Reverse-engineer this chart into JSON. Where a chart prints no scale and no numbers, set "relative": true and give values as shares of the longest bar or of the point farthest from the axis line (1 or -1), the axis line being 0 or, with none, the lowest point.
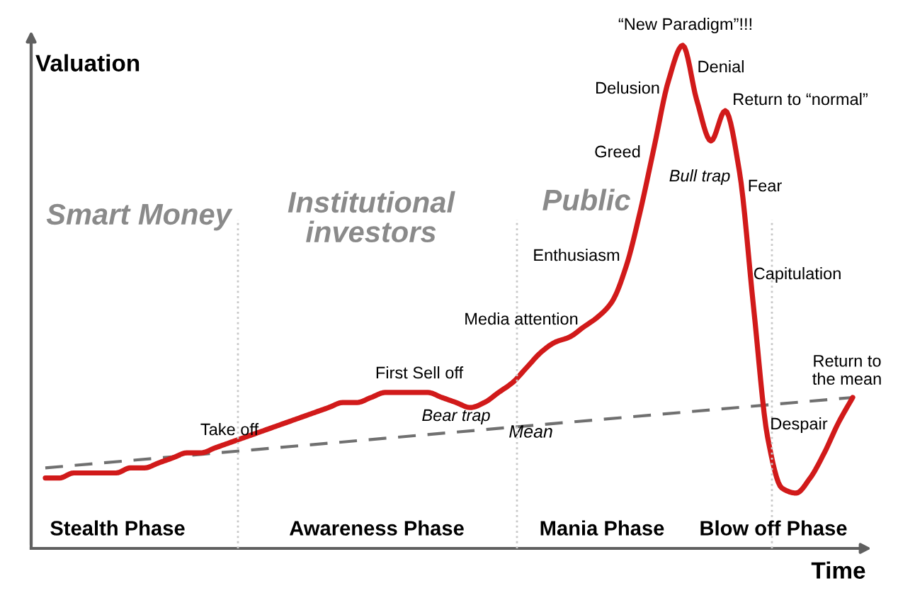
{
  "chart_data": {
    "type": "line",
    "relative": true,
    "xlabel": "Time",
    "ylabel": "Valuation",
    "legend": false,
    "marker": "none",
    "categories": [
      null,
      null,
      null,
      null,
      null,
      null,
      null,
      null,
      null,
      null,
      null,
      null,
      null,
      null,
      null,
      null,
      null,
      null,
      null,
      null,
      null,
      null,
      null,
      null,
      null,
      null,
      null,
      null,
      null,
      null,
      null,
      null,
      null,
      null,
      null,
      null,
      null,
      null,
      null,
      null,
      null,
      null,
      null,
      null,
      null,
      null,
      null,
      null,
      null,
      null,
      null,
      null,
      null,
      null,
      null,
      null,
      null,
      null
    ],
    "series": [
      {
        "color": "#d11a1a",
        "line_style": "solid",
        "values": [
          0.14,
          0.14,
          0.15,
          0.15,
          0.15,
          0.15,
          0.16,
          0.16,
          0.17,
          0.18,
          0.19,
          0.19,
          0.2,
          0.21,
          0.22,
          0.23,
          0.24,
          0.25,
          0.26,
          0.27,
          0.28,
          0.29,
          0.29,
          0.3,
          0.31,
          0.31,
          0.31,
          0.31,
          0.3,
          0.29,
          0.28,
          0.29,
          0.31,
          0.33,
          0.36,
          0.39,
          0.41,
          0.42,
          0.44,
          0.46,
          0.49,
          0.56,
          0.67,
          0.8,
          0.93,
          1,
          0.89,
          0.81,
          0.87,
          0.75,
          0.48,
          0.22,
          0.12,
          0.11,
          0.14,
          0.19,
          0.25,
          0.3
        ]
      },
      {
        "name": "Mean",
        "color": "#707070",
        "line_style": "dashed",
        "values": [
          0.16,
          null,
          null,
          null,
          null,
          null,
          null,
          null,
          null,
          null,
          null,
          null,
          null,
          null,
          null,
          null,
          null,
          null,
          null,
          null,
          null,
          null,
          null,
          null,
          null,
          null,
          null,
          null,
          null,
          null,
          null,
          null,
          null,
          null,
          null,
          null,
          null,
          null,
          null,
          null,
          null,
          null,
          null,
          null,
          null,
          null,
          null,
          null,
          null,
          null,
          null,
          null,
          null,
          null,
          null,
          null,
          null,
          0.3
        ]
      }
    ],
    "annotations": [
      "Stealth Phase",
      "Awareness Phase",
      "Mania Phase",
      "Blow off Phase",
      "Smart Money",
      "Institutional\ninvestors",
      "Public",
      "Take off",
      "First Sell off",
      "Bear trap",
      "Media attention",
      "Enthusiasm",
      "Greed",
      "Delusion",
      "“New Paradigm”!!!",
      "Denial",
      "Return to “normal”",
      "Bull trap",
      "Fear",
      "Capitulation",
      "Despair",
      "Return to\nthe mean"
    ]
  }
}
